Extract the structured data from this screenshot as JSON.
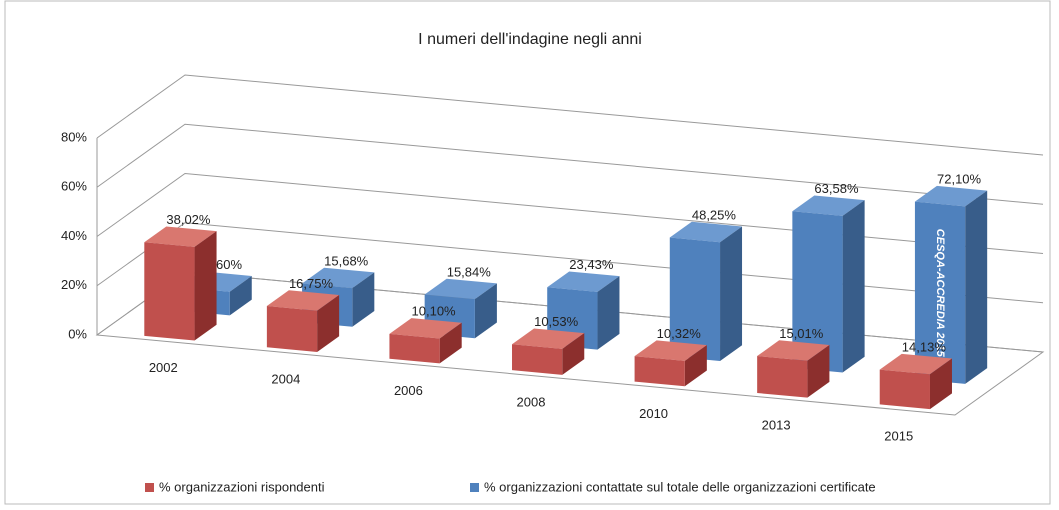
{
  "chart_data": {
    "type": "bar3d",
    "title": "I numeri dell'indagine negli anni",
    "categories": [
      "2002",
      "2004",
      "2006",
      "2008",
      "2010",
      "2013",
      "2015"
    ],
    "series": [
      {
        "name": "% organizzazioni rispondenti",
        "color": "#c0504d",
        "values": [
          38.02,
          16.75,
          10.1,
          10.53,
          10.32,
          15.01,
          14.13
        ],
        "value_labels": [
          "38,02%",
          "16,75%",
          "10,10%",
          "10,53%",
          "10,32%",
          "15,01%",
          "14,13%"
        ]
      },
      {
        "name": "% organizzazioni contattate sul totale delle organizzazioni certificate",
        "color": "#4f81bd",
        "values": [
          9.6,
          15.68,
          15.84,
          23.43,
          48.25,
          63.58,
          72.1
        ],
        "value_labels": [
          "9,60%",
          "15,68%",
          "15,84%",
          "23,43%",
          "48,25%",
          "63,58%",
          "72,10%"
        ]
      }
    ],
    "ylim": [
      0,
      80
    ],
    "yticks": [
      {
        "value": 0,
        "label": "0%"
      },
      {
        "value": 20,
        "label": "20%"
      },
      {
        "value": 40,
        "label": "40%"
      },
      {
        "value": 60,
        "label": "60%"
      },
      {
        "value": 80,
        "label": "80%"
      }
    ],
    "grid": true,
    "legend": "bottom",
    "annotation": "CESQA-ACCREDIA 2015"
  }
}
